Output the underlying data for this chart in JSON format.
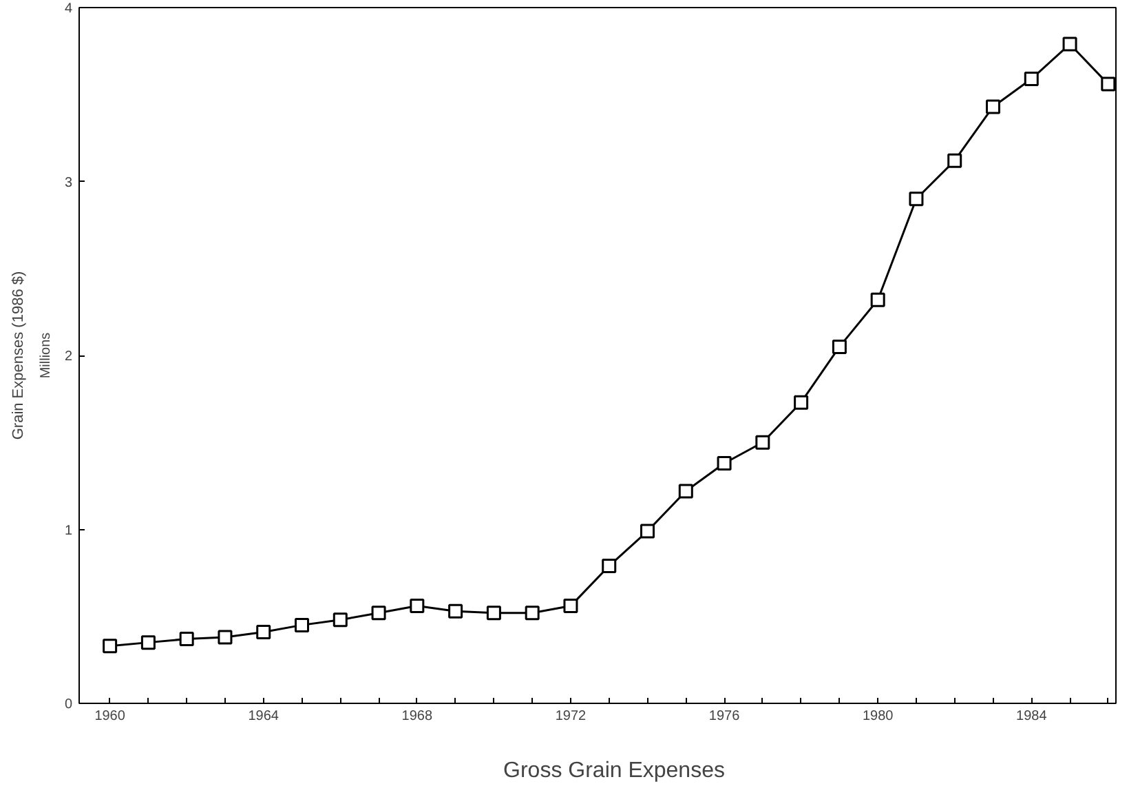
{
  "chart_data": {
    "type": "line",
    "ylabel": "Grain Expenses (1986 $)",
    "y2label": "Millions",
    "x": [
      1960,
      1961,
      1962,
      1963,
      1964,
      1965,
      1966,
      1967,
      1968,
      1969,
      1970,
      1971,
      1972,
      1973,
      1974,
      1975,
      1976,
      1977,
      1978,
      1979,
      1980,
      1981,
      1982,
      1983,
      1984,
      1985,
      1986
    ],
    "series": [
      {
        "name": "Gross Grain Expenses",
        "color": "#000000",
        "values": [
          0.33,
          0.35,
          0.37,
          0.38,
          0.41,
          0.45,
          0.48,
          0.52,
          0.56,
          0.53,
          0.52,
          0.52,
          0.56,
          0.79,
          0.99,
          1.22,
          1.38,
          1.5,
          1.73,
          2.05,
          2.32,
          2.9,
          3.12,
          3.43,
          3.59,
          3.79,
          3.56
        ]
      }
    ],
    "xlim": [
      1959.2,
      1986.2
    ],
    "ylim": [
      0,
      4
    ],
    "xticks": [
      1960,
      {
        "value": 1961,
        "label": null
      },
      {
        "value": 1962,
        "label": null
      },
      {
        "value": 1963,
        "label": null
      },
      1964,
      {
        "value": 1965,
        "label": null
      },
      {
        "value": 1966,
        "label": null
      },
      {
        "value": 1967,
        "label": null
      },
      1968,
      {
        "value": 1969,
        "label": null
      },
      {
        "value": 1970,
        "label": null
      },
      {
        "value": 1971,
        "label": null
      },
      1972,
      {
        "value": 1973,
        "label": null
      },
      {
        "value": 1974,
        "label": null
      },
      {
        "value": 1975,
        "label": null
      },
      1976,
      {
        "value": 1977,
        "label": null
      },
      {
        "value": 1978,
        "label": null
      },
      {
        "value": 1979,
        "label": null
      },
      1980,
      {
        "value": 1981,
        "label": null
      },
      {
        "value": 1982,
        "label": null
      },
      {
        "value": 1983,
        "label": null
      },
      1984,
      {
        "value": 1985,
        "label": null
      },
      {
        "value": 1986,
        "label": null
      }
    ],
    "yticks": [
      0,
      1,
      2,
      3,
      4
    ],
    "grid": false,
    "legend": "bottom",
    "marker": "square",
    "line_style": "solid"
  }
}
